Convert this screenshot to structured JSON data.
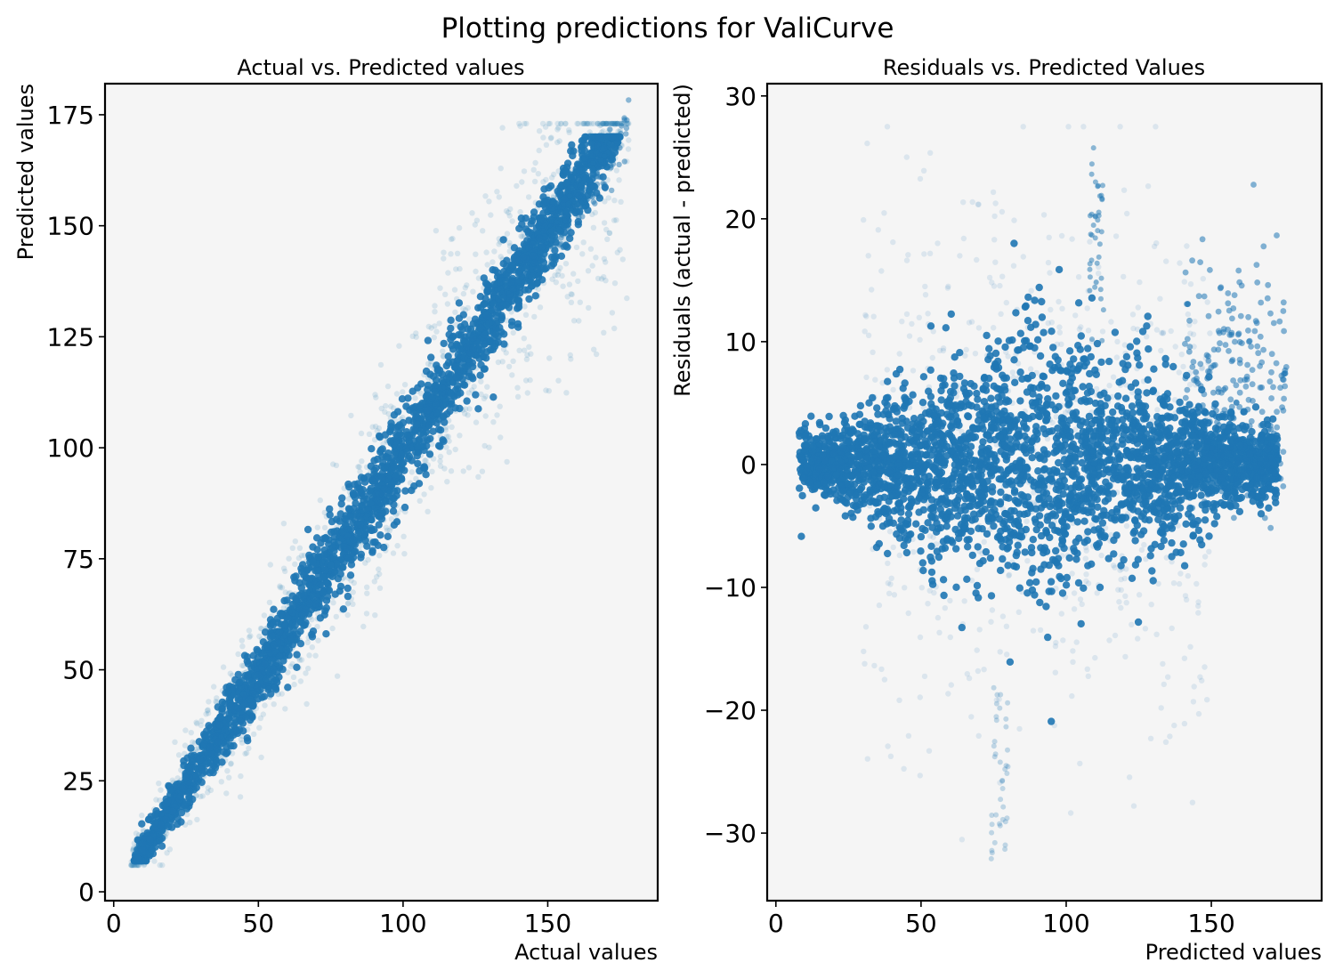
{
  "figure": {
    "title": "Plotting predictions for ValiCurve"
  },
  "chart_data": [
    {
      "type": "scatter",
      "title": "Actual vs. Predicted values",
      "xlabel": "Actual values",
      "ylabel": "Predicted values",
      "xlim": [
        -3,
        188
      ],
      "ylim": [
        -2,
        182
      ],
      "xticks": [
        0,
        50,
        100,
        150
      ],
      "yticks": [
        0,
        25,
        50,
        75,
        100,
        125,
        150,
        175
      ],
      "grid": false,
      "legend": "none",
      "marker_color": "#1f77b4",
      "background": "#f5f5f5",
      "pattern": "dense band along y = x from about (6, 7) to (180, 173); spread widening from about ±6 at low values to about ±15 at mid range",
      "data_extent": {
        "x_min": 6,
        "x_max": 180,
        "y_min": 6,
        "y_max": 173
      }
    },
    {
      "type": "scatter",
      "title": "Residuals vs. Predicted Values",
      "xlabel": "Predicted values",
      "ylabel": "Residuals (actual - predicted)",
      "xlim": [
        -3,
        188
      ],
      "ylim": [
        -35.5,
        31
      ],
      "xticks": [
        0,
        50,
        100,
        150
      ],
      "yticks": [
        -30,
        -20,
        -10,
        0,
        10,
        20,
        30
      ],
      "grid": false,
      "legend": "none",
      "marker_color": "#1f77b4",
      "background": "#f5f5f5",
      "pattern": "dense cloud centred near residual 0, core spanning predicted 35–145 and residual about -15 to +15; outlier tails to about +27.5 near predicted 112 and about -32.5 near predicted 78",
      "data_extent": {
        "x_min": 7,
        "x_max": 176,
        "y_min": -32.5,
        "y_max": 27.5
      }
    }
  ]
}
